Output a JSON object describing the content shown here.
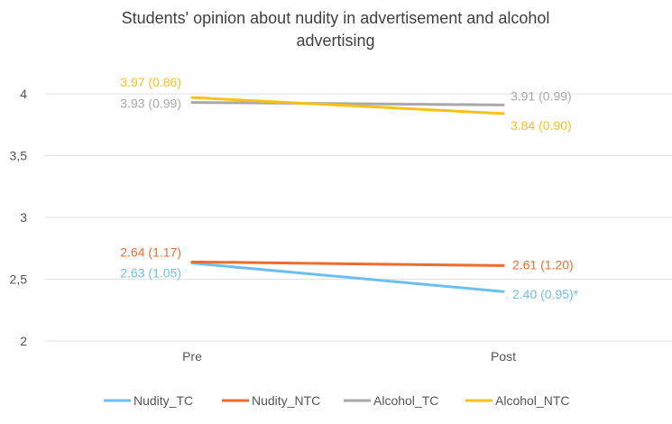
{
  "chart_data": {
    "type": "line",
    "title_lines": [
      "Students' opinion about nudity in advertisement and alcohol",
      "advertising"
    ],
    "categories": [
      "Pre",
      "Post"
    ],
    "ylim": [
      2,
      4
    ],
    "yticks": [
      {
        "value": 2,
        "label": "2"
      },
      {
        "value": 2.5,
        "label": "2,5"
      },
      {
        "value": 3,
        "label": "3"
      },
      {
        "value": 3.5,
        "label": "3,5"
      },
      {
        "value": 4,
        "label": "4"
      }
    ],
    "grid": true,
    "legend_position": "bottom",
    "xlabel": "",
    "ylabel": "",
    "series": [
      {
        "name": "Nudity_TC",
        "color": "#6dbfee",
        "values": [
          2.63,
          2.4
        ],
        "labels": [
          "2.63 (1.05)",
          "2.40 (0.95)*"
        ]
      },
      {
        "name": "Nudity_NTC",
        "color": "#f26b2b",
        "values": [
          2.64,
          2.61
        ],
        "labels": [
          "2.64 (1.17)",
          "2.61 (1.20)"
        ]
      },
      {
        "name": "Alcohol_TC",
        "color": "#a9a9a9",
        "values": [
          3.93,
          3.91
        ],
        "labels": [
          "3.93 (0.99)",
          "3.91 (0.99)"
        ]
      },
      {
        "name": "Alcohol_NTC",
        "color": "#f9c01c",
        "values": [
          3.97,
          3.84
        ],
        "labels": [
          "3.97 (0.86)",
          "3.84 (0.90)"
        ]
      }
    ]
  }
}
